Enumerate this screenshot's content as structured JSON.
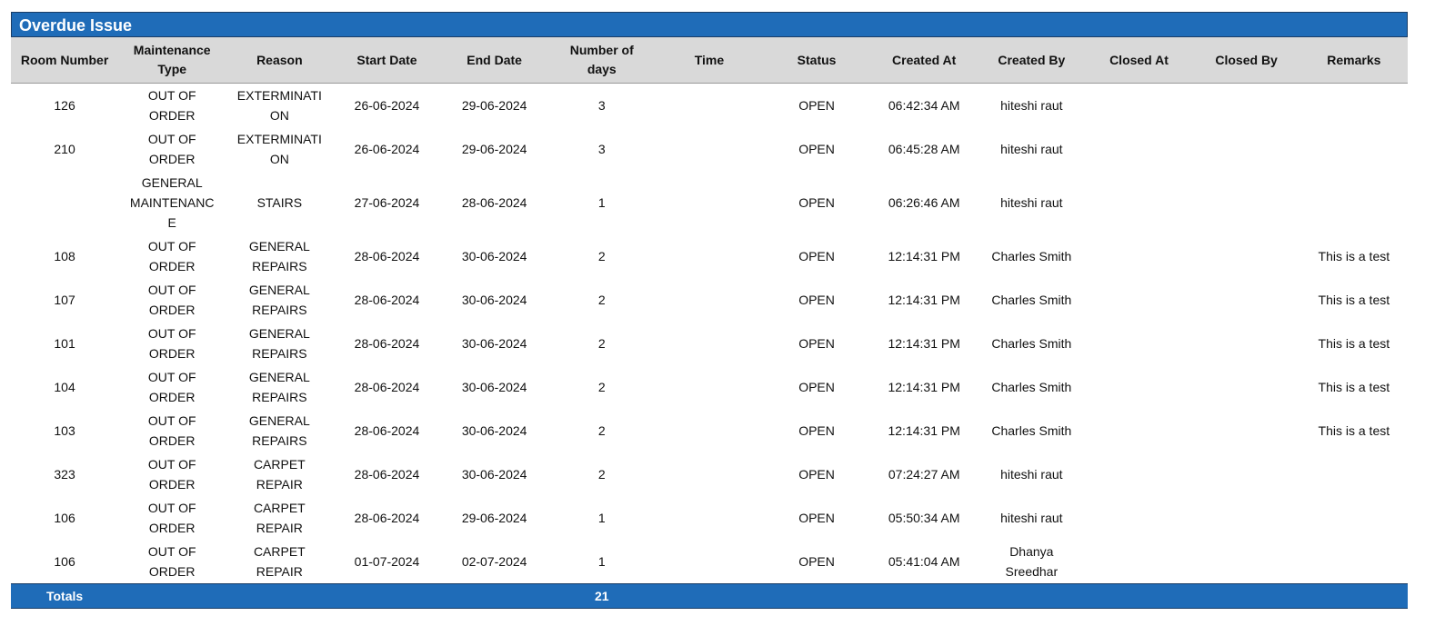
{
  "title": "Overdue Issue",
  "columns": [
    "Room Number",
    "Maintenance Type",
    "Reason",
    "Start Date",
    "End Date",
    "Number of days",
    "Time",
    "Status",
    "Created At",
    "Created By",
    "Closed At",
    "Closed By",
    "Remarks"
  ],
  "rows": [
    [
      "126",
      "OUT OF ORDER",
      "EXTERMINATION",
      "26-06-2024",
      "29-06-2024",
      "3",
      "",
      "OPEN",
      "06:42:34 AM",
      "hiteshi raut",
      "",
      "",
      ""
    ],
    [
      "210",
      "OUT OF ORDER",
      "EXTERMINATION",
      "26-06-2024",
      "29-06-2024",
      "3",
      "",
      "OPEN",
      "06:45:28 AM",
      "hiteshi raut",
      "",
      "",
      ""
    ],
    [
      "",
      "GENERAL MAINTENANCE",
      "STAIRS",
      "27-06-2024",
      "28-06-2024",
      "1",
      "",
      "OPEN",
      "06:26:46 AM",
      "hiteshi raut",
      "",
      "",
      ""
    ],
    [
      "108",
      "OUT OF ORDER",
      "GENERAL REPAIRS",
      "28-06-2024",
      "30-06-2024",
      "2",
      "",
      "OPEN",
      "12:14:31 PM",
      "Charles Smith",
      "",
      "",
      "This is a test"
    ],
    [
      "107",
      "OUT OF ORDER",
      "GENERAL REPAIRS",
      "28-06-2024",
      "30-06-2024",
      "2",
      "",
      "OPEN",
      "12:14:31 PM",
      "Charles Smith",
      "",
      "",
      "This is a test"
    ],
    [
      "101",
      "OUT OF ORDER",
      "GENERAL REPAIRS",
      "28-06-2024",
      "30-06-2024",
      "2",
      "",
      "OPEN",
      "12:14:31 PM",
      "Charles Smith",
      "",
      "",
      "This is a test"
    ],
    [
      "104",
      "OUT OF ORDER",
      "GENERAL REPAIRS",
      "28-06-2024",
      "30-06-2024",
      "2",
      "",
      "OPEN",
      "12:14:31 PM",
      "Charles Smith",
      "",
      "",
      "This is a test"
    ],
    [
      "103",
      "OUT OF ORDER",
      "GENERAL REPAIRS",
      "28-06-2024",
      "30-06-2024",
      "2",
      "",
      "OPEN",
      "12:14:31 PM",
      "Charles Smith",
      "",
      "",
      "This is a test"
    ],
    [
      "323",
      "OUT OF ORDER",
      "CARPET REPAIR",
      "28-06-2024",
      "30-06-2024",
      "2",
      "",
      "OPEN",
      "07:24:27 AM",
      "hiteshi raut",
      "",
      "",
      ""
    ],
    [
      "106",
      "OUT OF ORDER",
      "CARPET REPAIR",
      "28-06-2024",
      "29-06-2024",
      "1",
      "",
      "OPEN",
      "05:50:34 AM",
      "hiteshi raut",
      "",
      "",
      ""
    ],
    [
      "106",
      "OUT OF ORDER",
      "CARPET REPAIR",
      "01-07-2024",
      "02-07-2024",
      "1",
      "",
      "OPEN",
      "05:41:04 AM",
      "Dhanya Sreedhar",
      "",
      "",
      ""
    ]
  ],
  "totals": {
    "label": "Totals",
    "number_of_days": "21"
  },
  "colors": {
    "header_blue": "#1f6cb8",
    "header_grey": "#d9d9d9"
  }
}
